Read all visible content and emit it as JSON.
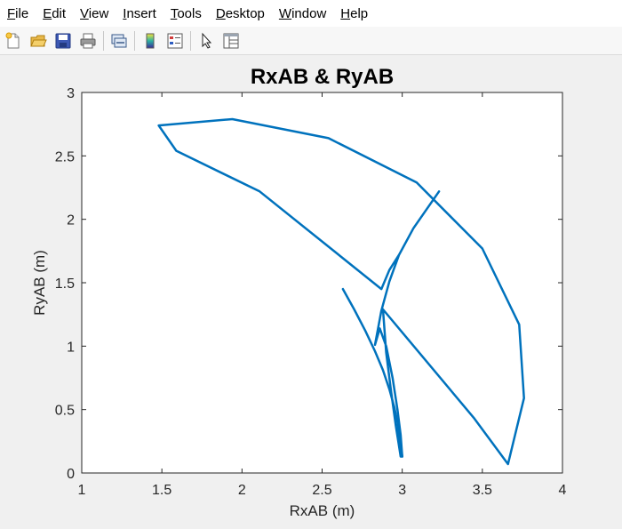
{
  "menu": {
    "items": [
      {
        "label": "File",
        "name": "menu-file"
      },
      {
        "label": "Edit",
        "name": "menu-edit"
      },
      {
        "label": "View",
        "name": "menu-view"
      },
      {
        "label": "Insert",
        "name": "menu-insert"
      },
      {
        "label": "Tools",
        "name": "menu-tools"
      },
      {
        "label": "Desktop",
        "name": "menu-desktop"
      },
      {
        "label": "Window",
        "name": "menu-window"
      },
      {
        "label": "Help",
        "name": "menu-help"
      }
    ]
  },
  "toolbar": {
    "icons": [
      "new-figure-icon",
      "open-file-icon",
      "save-icon",
      "print-icon",
      "link-plot-icon",
      "colorbar-icon",
      "legend-icon",
      "pointer-icon",
      "property-inspector-icon"
    ]
  },
  "colors": {
    "line": "#0072bd",
    "axes_bg": "#ffffff",
    "figure_bg": "#f0f0f0"
  },
  "chart_data": {
    "type": "line",
    "title": "RxAB & RyAB",
    "xlabel": "RxAB (m)",
    "ylabel": "RyAB (m)",
    "xlim": [
      1,
      4
    ],
    "ylim": [
      0,
      3
    ],
    "xticks": [
      1,
      1.5,
      2,
      2.5,
      3,
      3.5,
      4
    ],
    "yticks": [
      0,
      0.5,
      1,
      1.5,
      2,
      2.5,
      3
    ],
    "xtick_labels": [
      "1",
      "1.5",
      "2",
      "2.5",
      "3",
      "3.5",
      "4"
    ],
    "ytick_labels": [
      "0",
      "0.5",
      "1",
      "1.5",
      "2",
      "2.5",
      "3"
    ],
    "grid": false,
    "series": [
      {
        "x": [
          3.0,
          2.99,
          2.97,
          2.94,
          2.9,
          2.86,
          2.83,
          2.87,
          2.92,
          2.98,
          3.07,
          3.23,
          3.07,
          2.98,
          2.92,
          2.87,
          2.11,
          1.59,
          1.48,
          1.94,
          2.54,
          3.09,
          3.5,
          3.73,
          3.76,
          3.66,
          3.45,
          2.88,
          2.9,
          2.93,
          2.96,
          2.99,
          3.0
        ],
        "y": [
          0.13,
          0.3,
          0.5,
          0.75,
          1.0,
          1.14,
          1.01,
          1.28,
          1.51,
          1.72,
          1.93,
          2.22,
          1.93,
          1.72,
          1.6,
          1.45,
          2.22,
          2.54,
          2.74,
          2.79,
          2.64,
          2.29,
          1.77,
          1.17,
          0.59,
          0.07,
          0.43,
          1.29,
          0.95,
          0.65,
          0.37,
          0.13,
          0.13
        ]
      },
      {
        "x": [
          2.63,
          2.7,
          2.77,
          2.83,
          2.88,
          2.92,
          2.95,
          2.97,
          2.98,
          2.99,
          3.0
        ],
        "y": [
          1.45,
          1.29,
          1.12,
          0.96,
          0.81,
          0.66,
          0.52,
          0.4,
          0.3,
          0.21,
          0.13
        ]
      }
    ]
  }
}
